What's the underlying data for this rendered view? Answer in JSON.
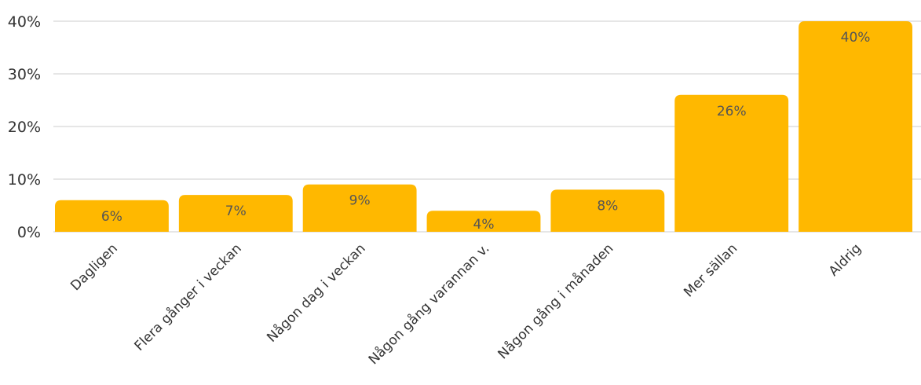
{
  "chart_data": {
    "type": "bar",
    "categories": [
      "Dagligen",
      "Flera gånger i veckan",
      "Någon dag i veckan",
      "Någon gång varannan v.",
      "Någon gång i månaden",
      "Mer sällan",
      "Aldrig"
    ],
    "values": [
      6,
      7,
      9,
      4,
      8,
      26,
      40
    ],
    "data_labels": [
      "6%",
      "7%",
      "9%",
      "4%",
      "8%",
      "26%",
      "40%"
    ],
    "yticks": [
      "0%",
      "10%",
      "20%",
      "30%",
      "40%"
    ],
    "ylim": [
      0,
      40
    ],
    "grid": true,
    "legend": "none",
    "colors": {
      "bar": "#FFB800",
      "grid": "#cccccc",
      "text": "#333333"
    }
  }
}
